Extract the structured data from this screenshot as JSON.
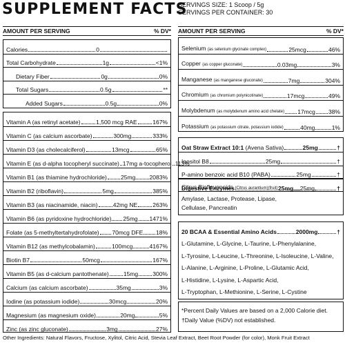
{
  "header": {
    "title": "SUPPLEMENT FACTS",
    "serving_size": "SERVINGS SIZE: 1 Scoop / 5g",
    "servings_per_container": "SERVINGS PER CONTAINER: 30"
  },
  "columns": {
    "left": {
      "amount": "AMOUNT PER SERVING",
      "dv": "% DV*"
    },
    "right": {
      "amount": "AMOUNT PER SERVING",
      "dv": "% DV*"
    }
  },
  "macros": [
    {
      "name": "Calories",
      "amount": "0",
      "dv": ""
    },
    {
      "name": "Total Carbohydrate",
      "amount": "1g",
      "dv": "<1%"
    },
    {
      "name": "Dietary Fiber",
      "amount": "0g",
      "dv": "0%"
    },
    {
      "name": "Total Sugars",
      "amount": "0.5g",
      "dv": "**"
    },
    {
      "name": "Added Sugars",
      "amount": "0.5g",
      "dv": "0%"
    }
  ],
  "vitamins": [
    {
      "name": "Vitamin A (as retinyl acetate)",
      "amount": "1,500 mcg RAE",
      "dv": "167%"
    },
    {
      "name": "Vitamin C (as calcium ascorbate)",
      "amount": "300mg",
      "dv": "333%"
    },
    {
      "name": "Vitamin D3 (as cholecalciferol)",
      "amount": "13mcg",
      "dv": "65%"
    },
    {
      "name": "Vitamin E (as d-alpha tocopheryl succinate)",
      "amount": "17mg a-tocopherol",
      "dv": "113%"
    },
    {
      "name": "Vitamin B1 (as thiamine hydrochloride)",
      "amount": "25mg",
      "dv": "2083%"
    },
    {
      "name": "Vitamin B2 (riboflavin)",
      "amount": "5mg",
      "dv": "385%"
    },
    {
      "name": "Vitamin B3 (as niacinamide, niacin)",
      "amount": "42mg NE",
      "dv": "263%"
    },
    {
      "name": "Vitamin B6 (as pyridoxine hydrochloride)",
      "amount": "25mg",
      "dv": "1471%"
    },
    {
      "name": "Folate (as 5-methyltertahydrofolate)",
      "amount": "70mcg DFE",
      "dv": "18%"
    },
    {
      "name": "Vitamin B12 (as methylcobalamin)",
      "amount": "100mcg",
      "dv": "4167%"
    },
    {
      "name": "Biotin B7",
      "amount": "50mcg",
      "dv": "167%"
    },
    {
      "name": "Vitamin B5 (as d-calcium pantothenate)",
      "amount": "15mg",
      "dv": "300%"
    },
    {
      "name": "Calcium (as calcium ascorbate)",
      "amount": "35mg",
      "dv": "3%"
    },
    {
      "name": "Iodine (as potassium iodide)",
      "amount": "30mcg",
      "dv": "20%"
    },
    {
      "name": "Magnesium (as magnesium oxide)",
      "amount": "20mg",
      "dv": "5%"
    },
    {
      "name": "Zinc (as zinc gluconate)",
      "amount": "3mg",
      "dv": "27%"
    }
  ],
  "minerals": [
    {
      "name": "Selenium",
      "source": "(as selenium glycinate complex)",
      "amount": "25mcg",
      "dv": "46%"
    },
    {
      "name": "Copper",
      "source": "(as copper gluconate)",
      "amount": "0.03mg",
      "dv": "3%"
    },
    {
      "name": "Manganese",
      "source": "(as manganese gluconate)",
      "amount": "7mg",
      "dv": "304%"
    },
    {
      "name": "Chromium",
      "source": "(as chromium polynicotinate)",
      "amount": "17mcg",
      "dv": "49%"
    },
    {
      "name": "Molybdenum",
      "source": "(as molybdenum amino acid chelate)",
      "amount": "17mcg",
      "dv": "38%"
    },
    {
      "name": "Potassium",
      "source": "(as potassium citrate, potassium iodide)",
      "amount": "40mg",
      "dv": "1%"
    }
  ],
  "blend1": {
    "title": "Oat Straw Extract 10:1",
    "title_sub": "(Avena Sativa)",
    "amount": "25mg",
    "dv": "†",
    "items": [
      {
        "name": "Inositol B8",
        "source": "",
        "amount": "25mg",
        "dv": "†"
      },
      {
        "name": "P-amino benzoic acid B10 (PABA)",
        "source": "",
        "amount": "25mg",
        "dv": "†"
      },
      {
        "name": "Citrus Bioflavonoids",
        "source": "(Citrus aurantium)(fruit)",
        "amount": "25mg",
        "dv": "†"
      }
    ]
  },
  "enzymes": {
    "title": "Digestive Enzymes",
    "amount": "25mg",
    "dv": "†",
    "contents": [
      "Amylase, Lactase, Protease, Lipase,",
      "Cellulase, Pancreatin"
    ]
  },
  "amino": {
    "title": "20 BCAA & Essential Amino Acids",
    "amount": "2000mg",
    "dv": "†",
    "contents": [
      "L-Glutamine, L-Glycine, L-Taurine, L-Phenylalanine,",
      "L-Tyrosine, L-Leucine, L-Threonine, L-Isoleucine, L-Valine,",
      "L-Alanine, L-Arginine, L-Proline, L-Glutamic Acid,",
      "L-Histidine, L-Lysine, L-Aspartic Acid,",
      "L-Tryptophan, L-Methionine, L-Serine, L-Cystine"
    ]
  },
  "notes": [
    "*Percent Daily Values are based on a 2,000 Calorie diet.",
    "†Daily Value (%DV) not established."
  ],
  "footer": "Other Ingredients: Natural Flavors, Fructose, Xylitol, Citric Acid, Stevia Leaf Extract, Beet Root Powder (for color), Monk Fruit Extract"
}
